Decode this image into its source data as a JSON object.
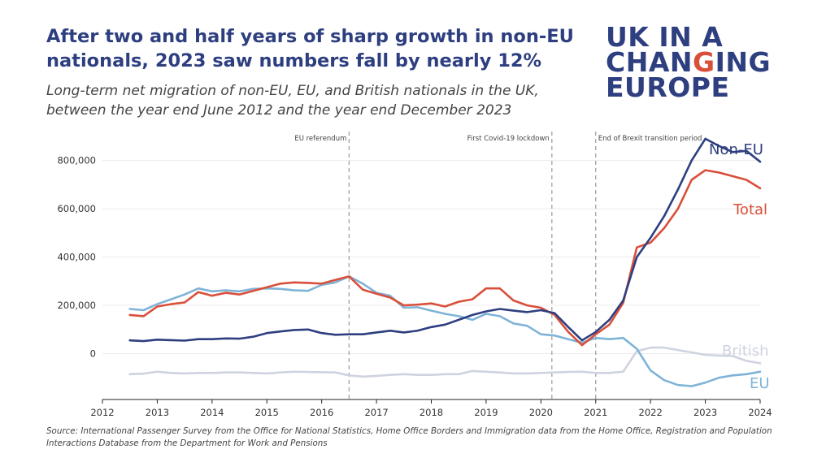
{
  "header": {
    "title_line1": "After two and half years of sharp growth in non-EU",
    "title_line2": "nationals, 2023 saw numbers fall by nearly 12%",
    "subtitle_line1": "Long-term net migration of non-EU, EU, and British nationals in the UK,",
    "subtitle_line2": "between the year end June 2012 and the year end December 2023"
  },
  "logo": {
    "line1": "UK IN A",
    "line2_a": "CHAN",
    "line2_b": "G",
    "line2_c": "ING",
    "line3": "EUROPE"
  },
  "source": {
    "line1": "Source: International Passenger Survey from the Office for National Statistics, Home Office Borders and Immigration data from the Home Office, Registration and Population",
    "line2": "Interactions Database from the Department for Work and Pensions"
  },
  "chart_data": {
    "type": "line",
    "x_ticks": [
      "2012",
      "2013",
      "2014",
      "2015",
      "2016",
      "2017",
      "2018",
      "2019",
      "2020",
      "2021",
      "2022",
      "2023",
      "2024"
    ],
    "y_ticks": [
      {
        "value": 800000,
        "label": "800,000"
      },
      {
        "value": 600000,
        "label": "600,000"
      },
      {
        "value": 400000,
        "label": "400,000"
      },
      {
        "value": 200000,
        "label": "200,000"
      },
      {
        "value": 0,
        "label": "0"
      }
    ],
    "xlim": [
      2012,
      2024
    ],
    "ylim": [
      -190000,
      920000
    ],
    "grid": true,
    "events": [
      {
        "x": 2016.5,
        "label": "EU referendum"
      },
      {
        "x": 2020.2,
        "label": "First Covid-19 lockdown"
      },
      {
        "x": 2021.0,
        "label": "End of Brexit transition period"
      }
    ],
    "x": [
      2012.5,
      2012.75,
      2013.0,
      2013.25,
      2013.5,
      2013.75,
      2014.0,
      2014.25,
      2014.5,
      2014.75,
      2015.0,
      2015.25,
      2015.5,
      2015.75,
      2016.0,
      2016.25,
      2016.5,
      2016.75,
      2017.0,
      2017.25,
      2017.5,
      2017.75,
      2018.0,
      2018.25,
      2018.5,
      2018.75,
      2019.0,
      2019.25,
      2019.5,
      2019.75,
      2020.0,
      2020.25,
      2020.5,
      2020.75,
      2021.0,
      2021.25,
      2021.5,
      2021.75,
      2022.0,
      2022.25,
      2022.5,
      2022.75,
      2023.0,
      2023.25,
      2023.5,
      2023.75,
      2024.0
    ],
    "series": [
      {
        "name": "Non-EU",
        "color": "#2e3f80",
        "values": [
          55000,
          52000,
          58000,
          56000,
          54000,
          60000,
          60000,
          63000,
          62000,
          70000,
          85000,
          92000,
          98000,
          100000,
          85000,
          78000,
          80000,
          80000,
          88000,
          95000,
          88000,
          95000,
          110000,
          120000,
          140000,
          160000,
          175000,
          185000,
          178000,
          172000,
          180000,
          168000,
          110000,
          55000,
          90000,
          140000,
          220000,
          400000,
          480000,
          570000,
          680000,
          800000,
          890000,
          860000,
          835000,
          840000,
          795000
        ]
      },
      {
        "name": "Total",
        "color": "#d94f3a",
        "values": [
          160000,
          155000,
          195000,
          205000,
          212000,
          255000,
          240000,
          252000,
          245000,
          260000,
          275000,
          290000,
          295000,
          293000,
          290000,
          305000,
          320000,
          265000,
          248000,
          232000,
          200000,
          203000,
          208000,
          195000,
          215000,
          225000,
          270000,
          270000,
          220000,
          200000,
          190000,
          160000,
          90000,
          35000,
          80000,
          120000,
          210000,
          440000,
          460000,
          520000,
          600000,
          720000,
          760000,
          750000,
          735000,
          720000,
          685000
        ]
      },
      {
        "name": "British",
        "color": "#cfd3e0",
        "values": [
          -85000,
          -83000,
          -75000,
          -80000,
          -82000,
          -80000,
          -80000,
          -78000,
          -78000,
          -80000,
          -82000,
          -78000,
          -75000,
          -76000,
          -77000,
          -78000,
          -90000,
          -95000,
          -92000,
          -88000,
          -85000,
          -88000,
          -88000,
          -85000,
          -85000,
          -72000,
          -75000,
          -78000,
          -82000,
          -82000,
          -80000,
          -78000,
          -76000,
          -75000,
          -80000,
          -80000,
          -75000,
          10000,
          25000,
          25000,
          15000,
          5000,
          -5000,
          -8000,
          -10000,
          -30000,
          -40000
        ]
      },
      {
        "name": "EU",
        "color": "#7fb3d7",
        "values": [
          185000,
          180000,
          205000,
          225000,
          245000,
          270000,
          258000,
          262000,
          258000,
          268000,
          270000,
          268000,
          262000,
          260000,
          285000,
          295000,
          320000,
          290000,
          252000,
          240000,
          190000,
          192000,
          178000,
          165000,
          155000,
          140000,
          165000,
          155000,
          125000,
          115000,
          80000,
          75000,
          60000,
          45000,
          65000,
          60000,
          65000,
          20000,
          -70000,
          -110000,
          -130000,
          -135000,
          -120000,
          -100000,
          -90000,
          -85000,
          -75000
        ]
      }
    ]
  }
}
